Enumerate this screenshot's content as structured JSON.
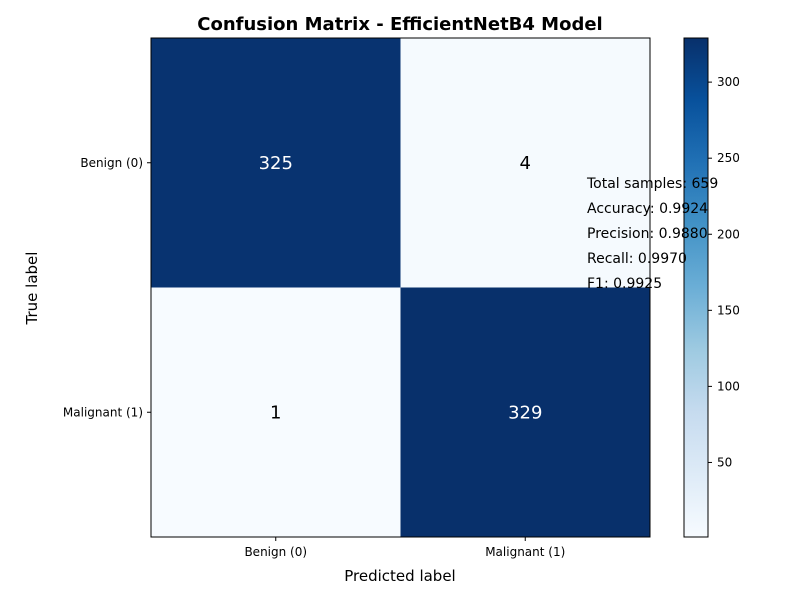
{
  "chart_data": {
    "type": "heatmap",
    "title": "Confusion Matrix - EfficientNetB4 Model",
    "xlabel": "Predicted label",
    "ylabel": "True label",
    "x_categories": [
      "Benign (0)",
      "Malignant (1)"
    ],
    "y_categories": [
      "Benign (0)",
      "Malignant (1)"
    ],
    "values": [
      [
        325,
        4
      ],
      [
        1,
        329
      ]
    ],
    "colormap": "Blues",
    "colorbar": {
      "min": 1,
      "max": 329,
      "ticks": [
        50,
        100,
        150,
        200,
        250,
        300
      ]
    },
    "annotations": [
      "Total samples: 659",
      "Accuracy: 0.9924",
      "Precision: 0.9880",
      "Recall: 0.9970",
      "F1: 0.9925"
    ],
    "grid": false
  }
}
